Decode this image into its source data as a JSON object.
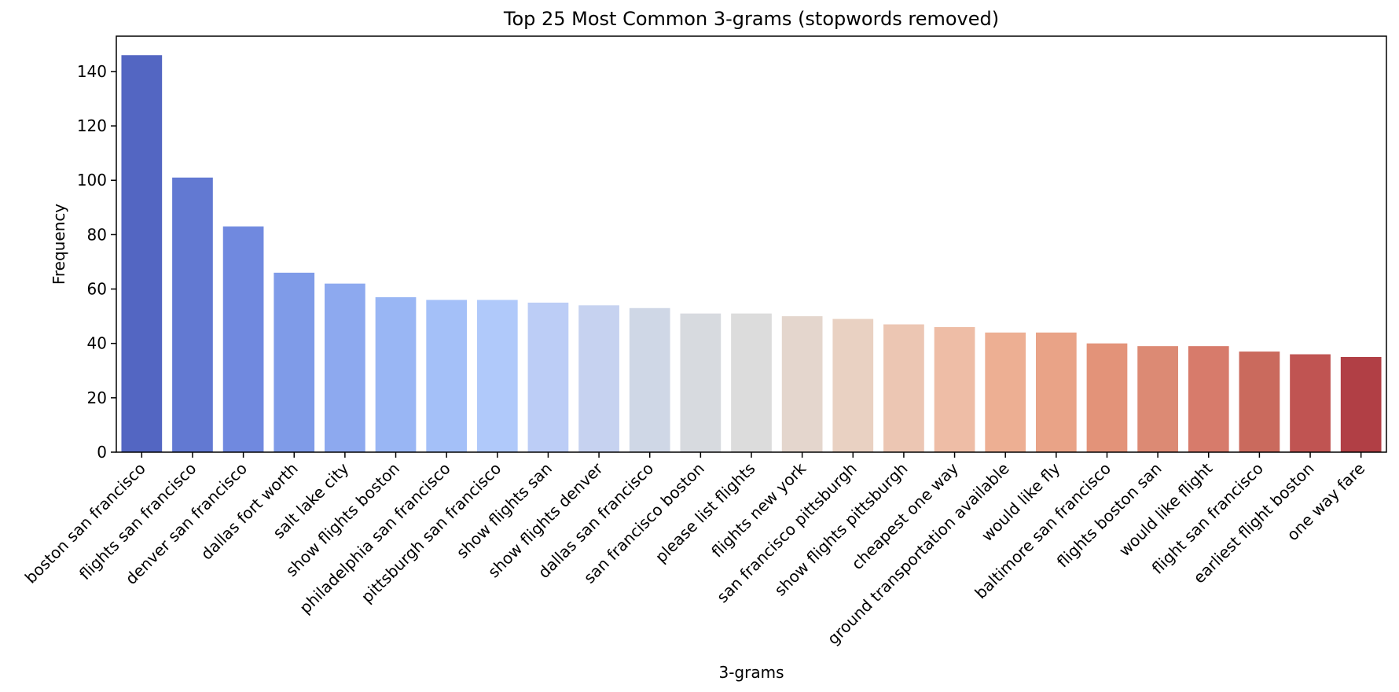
{
  "chart_data": {
    "type": "bar",
    "title": "Top 25 Most Common 3-grams (stopwords removed)",
    "xlabel": "3-grams",
    "ylabel": "Frequency",
    "ylim": [
      0,
      153
    ],
    "yticks": [
      0,
      20,
      40,
      60,
      80,
      100,
      120,
      140
    ],
    "grid": false,
    "palette": "coolwarm",
    "categories": [
      "boston san francisco",
      "flights san francisco",
      "denver san francisco",
      "dallas fort worth",
      "salt lake city",
      "show flights boston",
      "philadelphia san francisco",
      "pittsburgh san francisco",
      "show flights san",
      "show flights denver",
      "dallas san francisco",
      "san francisco boston",
      "please list flights",
      "flights new york",
      "san francisco pittsburgh",
      "show flights pittsburgh",
      "cheapest one way",
      "ground transportation available",
      "would like fly",
      "baltimore san francisco",
      "flights boston san",
      "would like flight",
      "flight san francisco",
      "earliest flight boston",
      "one way fare"
    ],
    "values": [
      146,
      101,
      83,
      66,
      62,
      57,
      56,
      56,
      55,
      54,
      53,
      51,
      51,
      50,
      49,
      47,
      46,
      44,
      44,
      40,
      39,
      39,
      37,
      36,
      35
    ],
    "colors": [
      "#5366c2",
      "#6279d2",
      "#7089df",
      "#7f9be8",
      "#8da9ef",
      "#99b6f4",
      "#a4c0f8",
      "#b0c9fa",
      "#bccdf6",
      "#c6d2f0",
      "#cfd7e6",
      "#d7dadf",
      "#dcdcdc",
      "#e4d6cd",
      "#e9d1c2",
      "#ecc6b3",
      "#eebda6",
      "#edaf93",
      "#e9a387",
      "#e39379",
      "#dc8a74",
      "#d77b6b",
      "#ca6a5d",
      "#c05452",
      "#b13f45"
    ]
  }
}
